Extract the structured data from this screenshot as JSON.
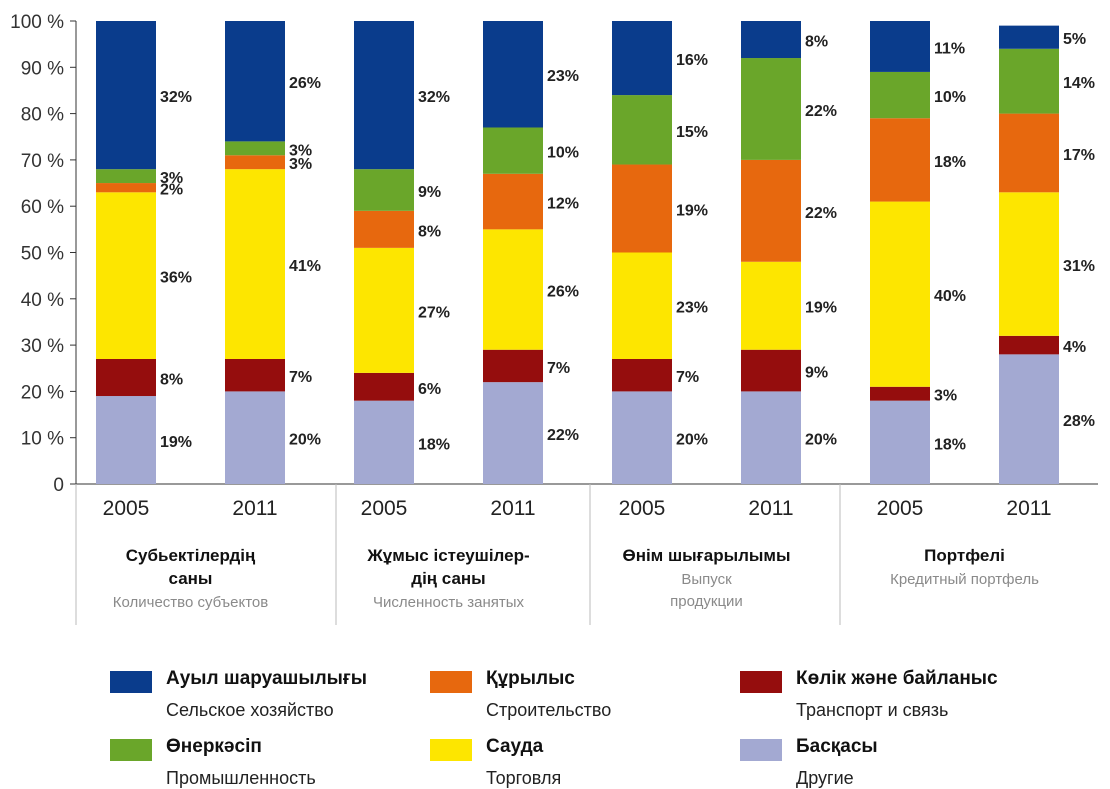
{
  "chart_data": {
    "type": "bar",
    "stacked": true,
    "ylim": [
      0,
      100
    ],
    "yticks": [
      "0",
      "10 %",
      "20 %",
      "30 %",
      "40 %",
      "50 %",
      "60 %",
      "70 %",
      "80 %",
      "90 %",
      "100 %"
    ],
    "groups": [
      {
        "title_kz": "Субъектілердің саны",
        "title_kz_lines": [
          "Субьектілердің",
          "саны"
        ],
        "title_ru_lines": [
          "Количество субъектов"
        ]
      },
      {
        "title_kz": "Жұмыс істеушілердің саны",
        "title_kz_lines": [
          "Жұмыс істеушілер-",
          "дің саны"
        ],
        "title_ru_lines": [
          "Численность занятых"
        ]
      },
      {
        "title_kz": "Өнім шығарылымы",
        "title_kz_lines": [
          "Өнім шығарылымы"
        ],
        "title_ru_lines": [
          "Выпуск",
          "продукции"
        ]
      },
      {
        "title_kz": "Портфелі",
        "title_kz_lines": [
          "Портфелі"
        ],
        "title_ru_lines": [
          "Кредитный портфель"
        ]
      }
    ],
    "bars": [
      {
        "group": 0,
        "year": "2005"
      },
      {
        "group": 0,
        "year": "2011"
      },
      {
        "group": 1,
        "year": "2005"
      },
      {
        "group": 1,
        "year": "2011"
      },
      {
        "group": 2,
        "year": "2005"
      },
      {
        "group": 2,
        "year": "2011"
      },
      {
        "group": 3,
        "year": "2005"
      },
      {
        "group": 3,
        "year": "2011"
      }
    ],
    "series": [
      {
        "name": "Басқасы",
        "name_ru": "Другие",
        "color": "#a3a9d2",
        "values": [
          19,
          20,
          18,
          22,
          20,
          20,
          18,
          28
        ],
        "labels": [
          "19%",
          "20%",
          "18%",
          "22%",
          "20%",
          "20%",
          "18%",
          "28%"
        ]
      },
      {
        "name": "Көлік және байланыс",
        "name_ru": "Транспорт и связь",
        "color": "#950d0d",
        "values": [
          8,
          7,
          6,
          7,
          7,
          9,
          3,
          4
        ],
        "labels": [
          "8%",
          "7%",
          "6%",
          "7%",
          "7%",
          "9%",
          "3%",
          "4%"
        ]
      },
      {
        "name": "Сауда",
        "name_ru": "Торговля",
        "color": "#fde600",
        "values": [
          36,
          41,
          27,
          26,
          23,
          19,
          40,
          31
        ],
        "labels": [
          "36%",
          "41%",
          "27%",
          "26%",
          "23%",
          "19%",
          "40%",
          "31%"
        ]
      },
      {
        "name": "Құрылыс",
        "name_ru": "Строительство",
        "color": "#e7680e",
        "values": [
          2,
          3,
          8,
          12,
          19,
          22,
          18,
          17
        ],
        "labels": [
          "2%",
          "3%",
          "8%",
          "12%",
          "19%",
          "22%",
          "18%",
          "17%"
        ]
      },
      {
        "name": "Өнеркәсіп",
        "name_ru": "Промышленность",
        "color": "#6aa62a",
        "values": [
          3,
          3,
          9,
          10,
          15,
          22,
          10,
          14
        ],
        "labels": [
          "3%",
          "3%",
          "9%",
          "10%",
          "15%",
          "22%",
          "10%",
          "14%"
        ]
      },
      {
        "name": "Ауыл шаруашылығы",
        "name_ru": "Сельское хозяйство",
        "color": "#0a3c8c",
        "values": [
          32,
          26,
          32,
          23,
          16,
          8,
          11,
          5
        ],
        "labels": [
          "32%",
          "26%",
          "32%",
          "23%",
          "16%",
          "8%",
          "11%",
          "5%"
        ]
      }
    ]
  },
  "legend": {
    "items": [
      {
        "kz": "Ауыл шаруашылығы",
        "ru": "Сельское хозяйство",
        "color": "#0a3c8c"
      },
      {
        "kz": "Құрылыс",
        "ru": "Строительство",
        "color": "#e7680e"
      },
      {
        "kz": "Көлік және байланыс",
        "ru": "Транспорт и связь",
        "color": "#950d0d"
      },
      {
        "kz": "Өнеркәсіп",
        "ru": "Промышленность",
        "color": "#6aa62a"
      },
      {
        "kz": "Сауда",
        "ru": "Торговля",
        "color": "#fde600"
      },
      {
        "kz": "Басқасы",
        "ru": "Другие",
        "color": "#a3a9d2"
      }
    ]
  }
}
